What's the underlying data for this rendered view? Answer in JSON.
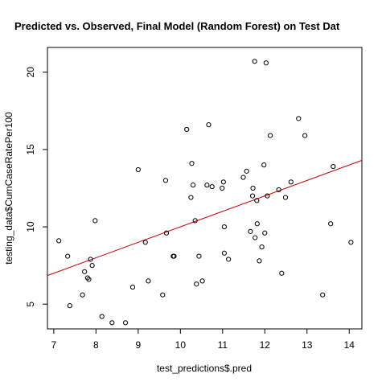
{
  "chart_data": {
    "type": "scatter",
    "title": "Predicted vs. Observed, Final Model (Random Forest) on Test Dat",
    "xlabel": "test_predictions$.pred",
    "ylabel": "testing_data$CumCaseRatePer100",
    "xlim": [
      6.85,
      14.3
    ],
    "ylim": [
      3.4,
      21.6
    ],
    "xticks": [
      "7",
      "8",
      "9",
      "10",
      "11",
      "12",
      "13",
      "14"
    ],
    "yticks": [
      "5",
      "10",
      "15",
      "20"
    ],
    "grid": false,
    "point_color": "#000000",
    "line_color": "#d00000",
    "regression_line": {
      "x": [
        6.85,
        14.3
      ],
      "y": [
        6.85,
        14.3
      ]
    },
    "points": [
      {
        "x": 7.12,
        "y": 9.1
      },
      {
        "x": 7.33,
        "y": 8.1
      },
      {
        "x": 7.38,
        "y": 4.9
      },
      {
        "x": 7.68,
        "y": 5.6
      },
      {
        "x": 7.73,
        "y": 7.1
      },
      {
        "x": 7.8,
        "y": 6.7
      },
      {
        "x": 7.83,
        "y": 6.6
      },
      {
        "x": 7.87,
        "y": 7.9
      },
      {
        "x": 7.91,
        "y": 7.5
      },
      {
        "x": 7.98,
        "y": 10.4
      },
      {
        "x": 8.14,
        "y": 4.2
      },
      {
        "x": 8.38,
        "y": 3.8
      },
      {
        "x": 8.7,
        "y": 3.8
      },
      {
        "x": 8.87,
        "y": 6.1
      },
      {
        "x": 9.0,
        "y": 13.7
      },
      {
        "x": 9.17,
        "y": 9.0
      },
      {
        "x": 9.24,
        "y": 6.5
      },
      {
        "x": 9.58,
        "y": 5.6
      },
      {
        "x": 9.65,
        "y": 13.0
      },
      {
        "x": 9.67,
        "y": 9.6
      },
      {
        "x": 9.83,
        "y": 8.1
      },
      {
        "x": 9.85,
        "y": 8.1
      },
      {
        "x": 10.15,
        "y": 16.3
      },
      {
        "x": 10.25,
        "y": 11.9
      },
      {
        "x": 10.27,
        "y": 14.1
      },
      {
        "x": 10.3,
        "y": 12.7
      },
      {
        "x": 10.35,
        "y": 10.4
      },
      {
        "x": 10.38,
        "y": 6.3
      },
      {
        "x": 10.44,
        "y": 8.1
      },
      {
        "x": 10.52,
        "y": 6.5
      },
      {
        "x": 10.63,
        "y": 12.7
      },
      {
        "x": 10.67,
        "y": 16.6
      },
      {
        "x": 10.75,
        "y": 12.6
      },
      {
        "x": 10.99,
        "y": 12.5
      },
      {
        "x": 11.02,
        "y": 12.9
      },
      {
        "x": 11.04,
        "y": 10.0
      },
      {
        "x": 11.04,
        "y": 8.3
      },
      {
        "x": 11.14,
        "y": 7.9
      },
      {
        "x": 11.49,
        "y": 13.2
      },
      {
        "x": 11.57,
        "y": 13.6
      },
      {
        "x": 11.66,
        "y": 9.7
      },
      {
        "x": 11.71,
        "y": 12.0
      },
      {
        "x": 11.72,
        "y": 12.5
      },
      {
        "x": 11.76,
        "y": 20.7
      },
      {
        "x": 11.77,
        "y": 9.3
      },
      {
        "x": 11.81,
        "y": 11.7
      },
      {
        "x": 11.82,
        "y": 10.2
      },
      {
        "x": 11.87,
        "y": 7.8
      },
      {
        "x": 11.93,
        "y": 8.7
      },
      {
        "x": 11.98,
        "y": 14.0
      },
      {
        "x": 12.0,
        "y": 9.6
      },
      {
        "x": 12.03,
        "y": 20.6
      },
      {
        "x": 12.06,
        "y": 12.0
      },
      {
        "x": 12.13,
        "y": 15.9
      },
      {
        "x": 12.33,
        "y": 12.4
      },
      {
        "x": 12.4,
        "y": 7.0
      },
      {
        "x": 12.49,
        "y": 11.9
      },
      {
        "x": 12.62,
        "y": 12.9
      },
      {
        "x": 12.8,
        "y": 17.0
      },
      {
        "x": 12.95,
        "y": 15.9
      },
      {
        "x": 13.37,
        "y": 5.6
      },
      {
        "x": 13.56,
        "y": 10.2
      },
      {
        "x": 13.62,
        "y": 13.9
      },
      {
        "x": 14.04,
        "y": 9.0
      }
    ]
  }
}
